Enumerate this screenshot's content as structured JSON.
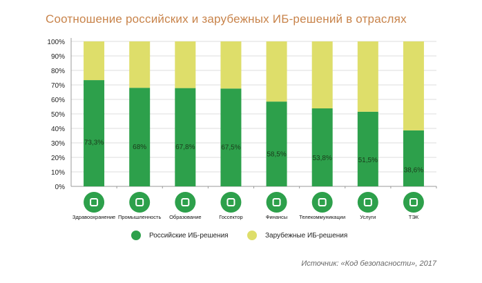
{
  "chart_data": {
    "type": "bar",
    "stacked": true,
    "title": "Соотношение российских и зарубежных ИБ-решений в отраслях",
    "categories": [
      "Здравоохранение",
      "Промышленность",
      "Образование",
      "Госсектор",
      "Финансы",
      "Телекоммуникации",
      "Услуги",
      "ТЭК"
    ],
    "icons": [
      "medical-cross-icon",
      "gear-wrench-icon",
      "graduation-cap-icon",
      "government-building-icon",
      "money-icon",
      "antenna-signal-icon",
      "support-person-icon",
      "fuel-icon"
    ],
    "series": [
      {
        "name": "Российские ИБ-решения",
        "color": "#2da04b",
        "values": [
          73.3,
          68,
          67.8,
          67.5,
          58.5,
          53.8,
          51.5,
          38.6
        ],
        "labels": [
          "73,3%",
          "68%",
          "67,8%",
          "67,5%",
          "58,5%",
          "53,8%",
          "51,5%",
          "38,6%"
        ]
      },
      {
        "name": "Зарубежные ИБ-решения",
        "color": "#dede6a",
        "values": [
          26.7,
          32,
          32.2,
          32.5,
          41.5,
          46.2,
          48.5,
          61.4
        ]
      }
    ],
    "yticks": [
      "0%",
      "10%",
      "20%",
      "30%",
      "40%",
      "50%",
      "60%",
      "70%",
      "80%",
      "90%",
      "100%"
    ],
    "ylim": [
      0,
      100
    ],
    "grid": true,
    "legend": "bottom"
  },
  "source": "Источник: «Код безопасности», 2017"
}
